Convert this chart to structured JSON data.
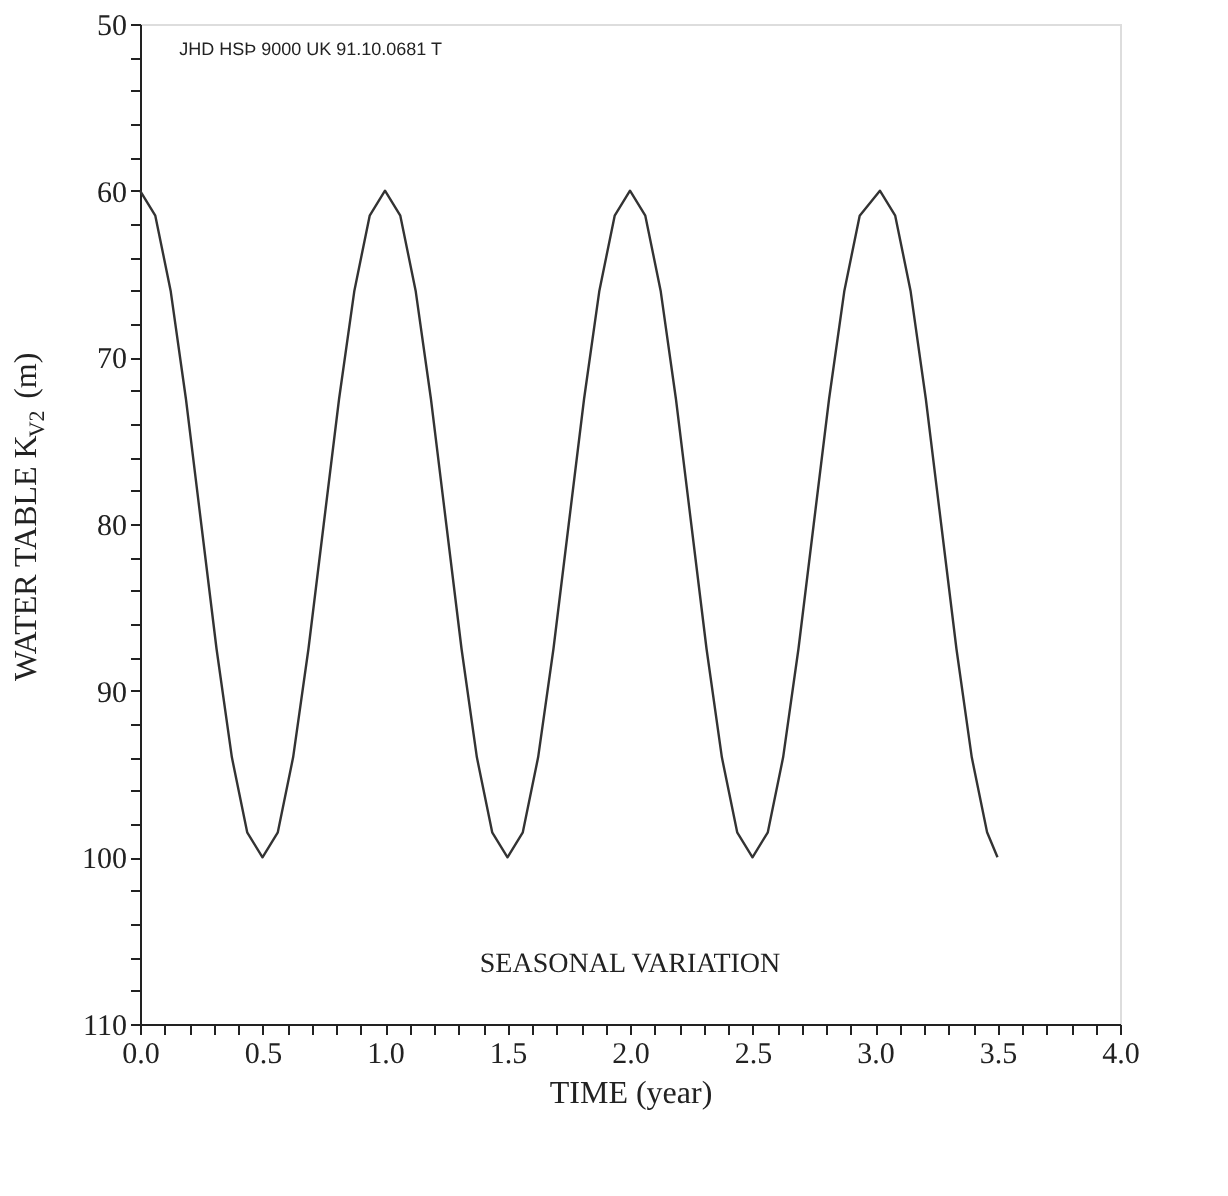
{
  "chart_data": {
    "type": "line",
    "xlabel": "TIME (year)",
    "ylabel": "WATER TABLE K$_{V2}$ (m)",
    "annotations": [
      "SEASONAL VARIATION",
      "JHD HSÞ 9000 UK 91.10.0681 T"
    ],
    "x": [
      0,
      0.0625,
      0.125,
      0.1875,
      0.25,
      0.3125,
      0.375,
      0.4375,
      0.5,
      0.5625,
      0.625,
      0.6875,
      0.75,
      0.8125,
      0.875,
      0.9375,
      1.0,
      1.0625,
      1.125,
      1.1875,
      1.25,
      1.3125,
      1.375,
      1.4375,
      1.5,
      1.5625,
      1.625,
      1.6875,
      1.75,
      1.8125,
      1.875,
      1.9375,
      2.0,
      2.0625,
      2.125,
      2.1875,
      2.25,
      2.3125,
      2.375,
      2.4375,
      2.5,
      2.5625,
      2.625,
      2.6875,
      2.75,
      2.8125,
      2.875,
      2.9375,
      3.02,
      3.0825,
      3.145,
      3.2075,
      3.27,
      3.3325,
      3.395,
      3.4575,
      3.5
    ],
    "series": [
      {
        "color": "#333333",
        "values": [
          60,
          61.5,
          66,
          72.5,
          80,
          87.5,
          94,
          98.5,
          100,
          98.5,
          94,
          87.5,
          80,
          72.5,
          66,
          61.5,
          60,
          61.5,
          66,
          72.5,
          80,
          87.5,
          94,
          98.5,
          100,
          98.5,
          94,
          87.5,
          80,
          72.5,
          66,
          61.5,
          60,
          61.5,
          66,
          72.5,
          80,
          87.5,
          94,
          98.5,
          100,
          98.5,
          94,
          87.5,
          80,
          72.5,
          66,
          61.5,
          60,
          61.5,
          66,
          72.5,
          80,
          87.5,
          94,
          98.5,
          100
        ]
      }
    ],
    "xlim": [
      0,
      4.0
    ],
    "xticks": [
      {
        "value": 0,
        "label": "0.0"
      },
      {
        "value": 0.1,
        "label": null
      },
      {
        "value": 0.2,
        "label": null
      },
      {
        "value": 0.3,
        "label": null
      },
      {
        "value": 0.4,
        "label": null
      },
      {
        "value": 0.5,
        "label": "0.5"
      },
      {
        "value": 0.6,
        "label": null
      },
      {
        "value": 0.7,
        "label": null
      },
      {
        "value": 0.8,
        "label": null
      },
      {
        "value": 0.9,
        "label": null
      },
      {
        "value": 1,
        "label": "1.0"
      },
      {
        "value": 1.1,
        "label": null
      },
      {
        "value": 1.2,
        "label": null
      },
      {
        "value": 1.3,
        "label": null
      },
      {
        "value": 1.4,
        "label": null
      },
      {
        "value": 1.5,
        "label": "1.5"
      },
      {
        "value": 1.6,
        "label": null
      },
      {
        "value": 1.7,
        "label": null
      },
      {
        "value": 1.8,
        "label": null
      },
      {
        "value": 1.9,
        "label": null
      },
      {
        "value": 2,
        "label": "2.0"
      },
      {
        "value": 2.1,
        "label": null
      },
      {
        "value": 2.2,
        "label": null
      },
      {
        "value": 2.3,
        "label": null
      },
      {
        "value": 2.4,
        "label": null
      },
      {
        "value": 2.5,
        "label": "2.5"
      },
      {
        "value": 2.6,
        "label": null
      },
      {
        "value": 2.7,
        "label": null
      },
      {
        "value": 2.8,
        "label": null
      },
      {
        "value": 2.9,
        "label": null
      },
      {
        "value": 3,
        "label": "3.0"
      },
      {
        "value": 3.1,
        "label": null
      },
      {
        "value": 3.2,
        "label": null
      },
      {
        "value": 3.3,
        "label": null
      },
      {
        "value": 3.4,
        "label": null
      },
      {
        "value": 3.5,
        "label": "3.5"
      },
      {
        "value": 3.6,
        "label": null
      },
      {
        "value": 3.7,
        "label": null
      },
      {
        "value": 3.8,
        "label": null
      },
      {
        "value": 3.9,
        "label": null
      },
      {
        "value": 4,
        "label": "4.0"
      }
    ],
    "ylim": [
      110,
      50
    ],
    "yticks": [
      50,
      {
        "value": 52,
        "label": null
      },
      {
        "value": 54,
        "label": null
      },
      {
        "value": 56,
        "label": null
      },
      {
        "value": 58,
        "label": null
      },
      60,
      {
        "value": 62,
        "label": null
      },
      {
        "value": 64,
        "label": null
      },
      {
        "value": 66,
        "label": null
      },
      {
        "value": 68,
        "label": null
      },
      70,
      {
        "value": 72,
        "label": null
      },
      {
        "value": 74,
        "label": null
      },
      {
        "value": 76,
        "label": null
      },
      {
        "value": 78,
        "label": null
      },
      80,
      {
        "value": 82,
        "label": null
      },
      {
        "value": 84,
        "label": null
      },
      {
        "value": 86,
        "label": null
      },
      {
        "value": 88,
        "label": null
      },
      90,
      {
        "value": 92,
        "label": null
      },
      {
        "value": 94,
        "label": null
      },
      {
        "value": 96,
        "label": null
      },
      {
        "value": 98,
        "label": null
      },
      100,
      {
        "value": 102,
        "label": null
      },
      {
        "value": 104,
        "label": null
      },
      {
        "value": 106,
        "label": null
      },
      {
        "value": 108,
        "label": null
      },
      110
    ],
    "grid": false,
    "marker": "none",
    "line_style": "solid"
  }
}
